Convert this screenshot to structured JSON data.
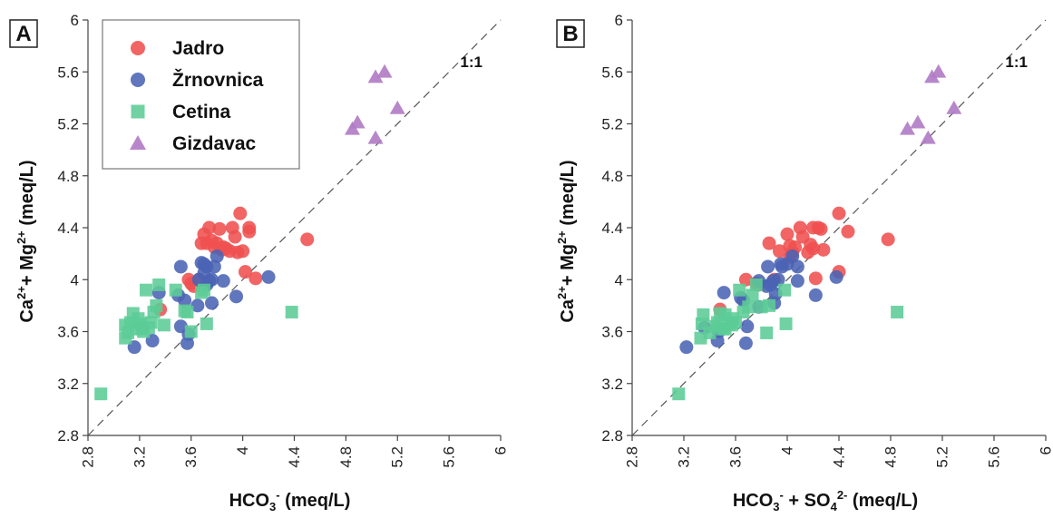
{
  "colors": {
    "Jadro": "#ef5050",
    "Žrnovnica": "#4a63b4",
    "Cetina": "#5ccc96",
    "Gizdavac": "#b07ac4"
  },
  "chart_data": [
    {
      "panel": "A",
      "type": "scatter",
      "xlabel_main": "HCO",
      "xlabel_sub": "3",
      "xlabel_sup": "-",
      "xlabel_unit": " (meq/L)",
      "ylabel_parts": [
        "Ca",
        "2+",
        "+ Mg",
        "2+",
        " (meq/L)"
      ],
      "xlim": [
        2.8,
        6
      ],
      "ylim": [
        2.8,
        6
      ],
      "xticks": [
        "2.8",
        "3.2",
        "3.6",
        "4",
        "4.4",
        "4.8",
        "5.2",
        "5.6",
        "6"
      ],
      "yticks": [
        "2.8",
        "3.2",
        "3.6",
        "4",
        "4.4",
        "4.8",
        "5.2",
        "5.6",
        "6"
      ],
      "ref_line_label": "1:1",
      "legend": [
        "Jadro",
        "Žrnovnica",
        "Cetina",
        "Gizdavac"
      ],
      "series": [
        {
          "name": "Jadro",
          "marker": "circle",
          "points": [
            [
              3.6,
              3.97
            ],
            [
              3.62,
              3.95
            ],
            [
              3.66,
              4.0
            ],
            [
              3.68,
              4.28
            ],
            [
              3.7,
              4.35
            ],
            [
              3.72,
              4.28
            ],
            [
              3.74,
              4.4
            ],
            [
              3.76,
              4.3
            ],
            [
              3.78,
              4.25
            ],
            [
              3.8,
              4.28
            ],
            [
              3.82,
              4.39
            ],
            [
              3.84,
              4.23
            ],
            [
              3.85,
              4.25
            ],
            [
              3.87,
              4.24
            ],
            [
              3.9,
              4.22
            ],
            [
              3.92,
              4.4
            ],
            [
              3.94,
              4.33
            ],
            [
              3.96,
              4.21
            ],
            [
              3.98,
              4.51
            ],
            [
              4.0,
              4.22
            ],
            [
              4.02,
              4.06
            ],
            [
              4.05,
              4.4
            ],
            [
              4.05,
              4.37
            ],
            [
              4.1,
              4.01
            ],
            [
              4.5,
              4.31
            ],
            [
              3.36,
              3.77
            ],
            [
              3.58,
              4.0
            ]
          ]
        },
        {
          "name": "Žrnovnica",
          "marker": "circle",
          "points": [
            [
              3.16,
              3.48
            ],
            [
              3.3,
              3.53
            ],
            [
              3.35,
              3.9
            ],
            [
              3.5,
              3.88
            ],
            [
              3.52,
              4.1
            ],
            [
              3.55,
              3.84
            ],
            [
              3.57,
              3.51
            ],
            [
              3.58,
              3.58
            ],
            [
              3.65,
              3.8
            ],
            [
              3.66,
              4.0
            ],
            [
              3.68,
              4.13
            ],
            [
              3.7,
              4.05
            ],
            [
              3.72,
              3.96
            ],
            [
              3.72,
              4.1
            ],
            [
              3.74,
              3.99
            ],
            [
              3.76,
              4.0
            ],
            [
              3.76,
              3.82
            ],
            [
              3.78,
              4.1
            ],
            [
              3.8,
              4.18
            ],
            [
              3.85,
              3.99
            ],
            [
              3.95,
              3.87
            ],
            [
              4.2,
              4.02
            ],
            [
              3.52,
              3.64
            ],
            [
              3.7,
              4.12
            ]
          ]
        },
        {
          "name": "Cetina",
          "marker": "square",
          "points": [
            [
              2.9,
              3.12
            ],
            [
              3.09,
              3.55
            ],
            [
              3.09,
              3.65
            ],
            [
              3.11,
              3.59
            ],
            [
              3.13,
              3.67
            ],
            [
              3.15,
              3.74
            ],
            [
              3.17,
              3.62
            ],
            [
              3.19,
              3.7
            ],
            [
              3.21,
              3.66
            ],
            [
              3.22,
              3.62
            ],
            [
              3.23,
              3.6
            ],
            [
              3.25,
              3.92
            ],
            [
              3.27,
              3.63
            ],
            [
              3.29,
              3.67
            ],
            [
              3.31,
              3.75
            ],
            [
              3.33,
              3.8
            ],
            [
              3.35,
              3.96
            ],
            [
              3.39,
              3.65
            ],
            [
              3.48,
              3.92
            ],
            [
              3.55,
              3.76
            ],
            [
              3.57,
              3.75
            ],
            [
              3.6,
              3.6
            ],
            [
              3.68,
              3.9
            ],
            [
              3.7,
              3.92
            ],
            [
              3.72,
              3.66
            ],
            [
              4.38,
              3.75
            ]
          ]
        },
        {
          "name": "Gizdavac",
          "marker": "triangle",
          "points": [
            [
              4.85,
              5.16
            ],
            [
              4.89,
              5.21
            ],
            [
              5.03,
              5.56
            ],
            [
              5.03,
              5.09
            ],
            [
              5.1,
              5.6
            ],
            [
              5.2,
              5.32
            ]
          ]
        }
      ]
    },
    {
      "panel": "B",
      "type": "scatter",
      "xlabel_main": "HCO",
      "xlabel_sub": "3",
      "xlabel_sup": "-",
      "xlabel_extra": " + SO",
      "xlabel_sub2": "4",
      "xlabel_sup2": "2-",
      "xlabel_unit": " (meq/L)",
      "ylabel_parts": [
        "Ca",
        "2+",
        "+ Mg",
        "2+",
        " (meq/L)"
      ],
      "xlim": [
        2.8,
        6
      ],
      "ylim": [
        2.8,
        6
      ],
      "xticks": [
        "2.8",
        "3.2",
        "3.6",
        "4",
        "4.4",
        "4.8",
        "5.2",
        "5.6",
        "6"
      ],
      "yticks": [
        "2.8",
        "3.2",
        "3.6",
        "4",
        "4.4",
        "4.8",
        "5.2",
        "5.6",
        "6"
      ],
      "ref_line_label": "1:1",
      "series": [
        {
          "name": "Jadro",
          "marker": "circle",
          "points": [
            [
              3.68,
              4.0
            ],
            [
              3.76,
              3.97
            ],
            [
              3.86,
              4.28
            ],
            [
              3.9,
              4.0
            ],
            [
              3.94,
              4.22
            ],
            [
              4.0,
              4.35
            ],
            [
              4.02,
              4.26
            ],
            [
              4.04,
              4.21
            ],
            [
              4.06,
              4.25
            ],
            [
              4.1,
              4.4
            ],
            [
              4.12,
              4.33
            ],
            [
              4.16,
              4.21
            ],
            [
              4.18,
              4.27
            ],
            [
              4.2,
              4.24
            ],
            [
              4.2,
              4.4
            ],
            [
              4.22,
              4.01
            ],
            [
              4.24,
              4.4
            ],
            [
              4.26,
              4.39
            ],
            [
              4.28,
              4.23
            ],
            [
              4.4,
              4.51
            ],
            [
              4.4,
              4.06
            ],
            [
              4.47,
              4.37
            ],
            [
              4.78,
              4.31
            ],
            [
              3.78,
              3.96
            ],
            [
              4.02,
              4.17
            ],
            [
              3.48,
              3.77
            ]
          ]
        },
        {
          "name": "Žrnovnica",
          "marker": "circle",
          "points": [
            [
              3.22,
              3.48
            ],
            [
              3.36,
              3.63
            ],
            [
              3.46,
              3.53
            ],
            [
              3.51,
              3.9
            ],
            [
              3.64,
              3.86
            ],
            [
              3.66,
              3.84
            ],
            [
              3.68,
              3.51
            ],
            [
              3.69,
              3.64
            ],
            [
              3.78,
              3.79
            ],
            [
              3.84,
              3.95
            ],
            [
              3.85,
              4.1
            ],
            [
              3.87,
              3.96
            ],
            [
              3.89,
              3.99
            ],
            [
              3.9,
              3.82
            ],
            [
              3.91,
              3.89
            ],
            [
              3.93,
              4.0
            ],
            [
              3.95,
              4.12
            ],
            [
              3.96,
              4.1
            ],
            [
              4.0,
              4.12
            ],
            [
              4.04,
              4.18
            ],
            [
              4.08,
              3.99
            ],
            [
              4.08,
              4.1
            ],
            [
              4.22,
              3.88
            ],
            [
              4.38,
              4.02
            ],
            [
              3.78,
              3.99
            ],
            [
              3.47,
              3.6
            ]
          ]
        },
        {
          "name": "Cetina",
          "marker": "square",
          "points": [
            [
              3.16,
              3.12
            ],
            [
              3.33,
              3.55
            ],
            [
              3.34,
              3.66
            ],
            [
              3.35,
              3.73
            ],
            [
              3.4,
              3.59
            ],
            [
              3.44,
              3.64
            ],
            [
              3.46,
              3.67
            ],
            [
              3.48,
              3.74
            ],
            [
              3.5,
              3.62
            ],
            [
              3.52,
              3.73
            ],
            [
              3.55,
              3.66
            ],
            [
              3.57,
              3.65
            ],
            [
              3.6,
              3.67
            ],
            [
              3.63,
              3.92
            ],
            [
              3.66,
              3.75
            ],
            [
              3.7,
              3.79
            ],
            [
              3.73,
              3.88
            ],
            [
              3.76,
              3.96
            ],
            [
              3.8,
              3.79
            ],
            [
              3.84,
              3.59
            ],
            [
              3.86,
              3.8
            ],
            [
              3.98,
              3.92
            ],
            [
              3.99,
              3.66
            ],
            [
              4.85,
              3.75
            ],
            [
              3.52,
              3.62
            ],
            [
              3.58,
              3.7
            ]
          ]
        },
        {
          "name": "Gizdavac",
          "marker": "triangle",
          "points": [
            [
              4.93,
              5.16
            ],
            [
              5.01,
              5.21
            ],
            [
              5.09,
              5.09
            ],
            [
              5.12,
              5.56
            ],
            [
              5.17,
              5.6
            ],
            [
              5.29,
              5.32
            ]
          ]
        }
      ]
    }
  ]
}
